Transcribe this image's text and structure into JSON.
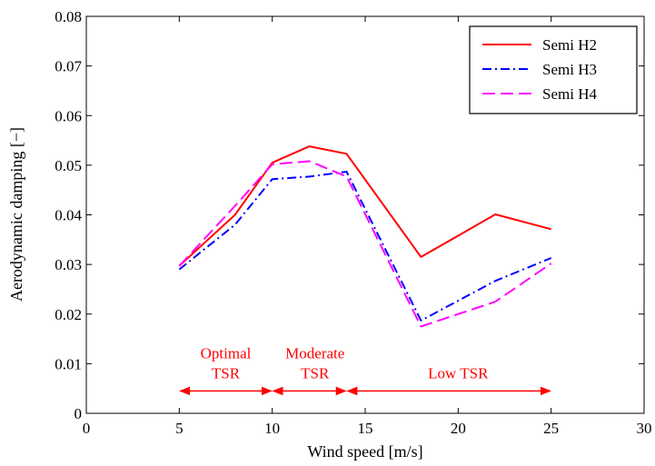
{
  "chart_data": {
    "type": "line",
    "xlabel": "Wind speed [m/s]",
    "ylabel": "Aerodynamic damping [−]",
    "xlim": [
      0,
      30
    ],
    "ylim": [
      0,
      0.08
    ],
    "xticks": [
      0,
      5,
      10,
      15,
      20,
      25,
      30
    ],
    "yticks": [
      0,
      0.01,
      0.02,
      0.03,
      0.04,
      0.05,
      0.06,
      0.07,
      0.08
    ],
    "grid": false,
    "legend_position": "top-right",
    "x": [
      5,
      8,
      10,
      12,
      14,
      18,
      22,
      25
    ],
    "series": [
      {
        "name": "Semi H2",
        "values": [
          0.0297,
          0.04,
          0.0505,
          0.0538,
          0.0523,
          0.0315,
          0.0401,
          0.0371
        ],
        "color": "#ff0000",
        "dash": "solid"
      },
      {
        "name": "Semi H3",
        "values": [
          0.029,
          0.038,
          0.0472,
          0.0477,
          0.0487,
          0.0187,
          0.0267,
          0.0313
        ],
        "color": "#0000ff",
        "dash": "dashdot"
      },
      {
        "name": "Semi H4",
        "values": [
          0.0297,
          0.0418,
          0.0502,
          0.0508,
          0.0477,
          0.0175,
          0.0225,
          0.0302
        ],
        "color": "#ff00ff",
        "dash": "dash"
      }
    ],
    "annotations": [
      {
        "lines": [
          "Optimal",
          "TSR"
        ],
        "x_range": [
          5,
          10
        ],
        "y": 0.0045,
        "label_x": 7.5
      },
      {
        "lines": [
          "Moderate",
          "TSR"
        ],
        "x_range": [
          10,
          14
        ],
        "y": 0.0045,
        "label_x": 12.3
      },
      {
        "lines": [
          "Low TSR"
        ],
        "x_range": [
          14,
          25
        ],
        "y": 0.0045,
        "label_x": 20
      }
    ],
    "annotation_color": "#ff0000"
  }
}
